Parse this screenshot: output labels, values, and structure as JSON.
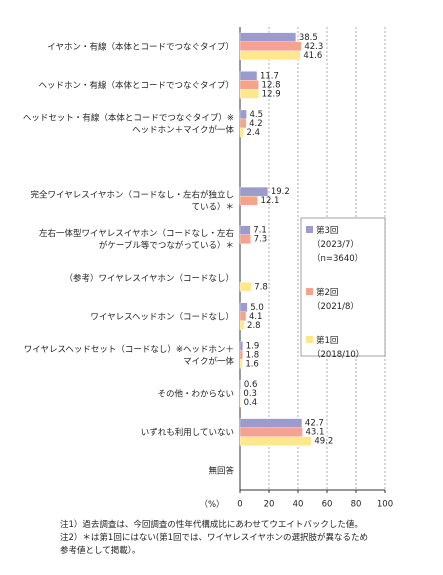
{
  "chart_data": {
    "type": "hbar",
    "categories": [
      "イヤホン・有線（本体とコードでつなぐタイプ）",
      "ヘッドホン・有線（本体とコードでつなぐタイプ）",
      "ヘッドセット・有線（本体とコードでつなぐタイプ）※\nヘッドホン＋マイクが一体",
      null,
      "完全ワイヤレスイヤホン（コードなし・左右が独立し\nている）＊",
      "左右一体型ワイヤレスイヤホン（コードなし・左右\nがケーブル等でつながっている）＊",
      "（参考）ワイヤレスイヤホン（コードなし）",
      "ワイヤレスヘッドホン（コードなし）",
      "ワイヤレスヘッドセット（コードなし）※ヘッドホン＋\nマイクが一体",
      "その他・わからない",
      "いずれも利用していない",
      "無回答"
    ],
    "series": [
      {
        "name": "第3回\n（2023/7）\n（n=3640）",
        "color": "#9c9ccc",
        "values": [
          38.5,
          11.7,
          4.5,
          null,
          19.2,
          7.1,
          null,
          5.0,
          1.9,
          0.6,
          42.7,
          null
        ],
        "value_labels": [
          "38.5",
          "11.7",
          "4.5",
          null,
          "19.2",
          "7.1",
          null,
          "5.0",
          "1.9",
          "0.6",
          "42.7",
          null
        ]
      },
      {
        "name": "第2回\n（2021/8）",
        "color": "#f4a48c",
        "values": [
          42.3,
          12.8,
          4.2,
          null,
          12.1,
          7.3,
          null,
          4.1,
          1.8,
          0.3,
          43.1,
          null
        ],
        "value_labels": [
          "42.3",
          "12.8",
          "4.2",
          null,
          "12.1",
          "7.3",
          null,
          "4.1",
          "1.8",
          "0.3",
          "43.1",
          null
        ]
      },
      {
        "name": "第1回\n（2018/10）",
        "color": "#ffe88c",
        "values": [
          41.6,
          12.9,
          2.4,
          null,
          null,
          null,
          7.8,
          2.8,
          1.6,
          0.4,
          49.2,
          null
        ],
        "value_labels": [
          "41.6",
          "12.9",
          "2.4",
          null,
          null,
          null,
          "7.8",
          "2.8",
          "1.6",
          "0.4",
          "49.2",
          null
        ]
      }
    ],
    "xlim": [
      0,
      100
    ],
    "xticks": [
      0,
      20,
      40,
      60,
      80,
      100
    ],
    "grid": true,
    "x_label": "（%）",
    "notes": [
      "注1）過去調査は、今回調査の性年代構成比にあわせてウエイトバックした値。",
      "注2）＊は第1回にはない(第1回では、ワイヤレスイヤホンの選択肢が異なるため\n参考値として掲載）。"
    ]
  }
}
